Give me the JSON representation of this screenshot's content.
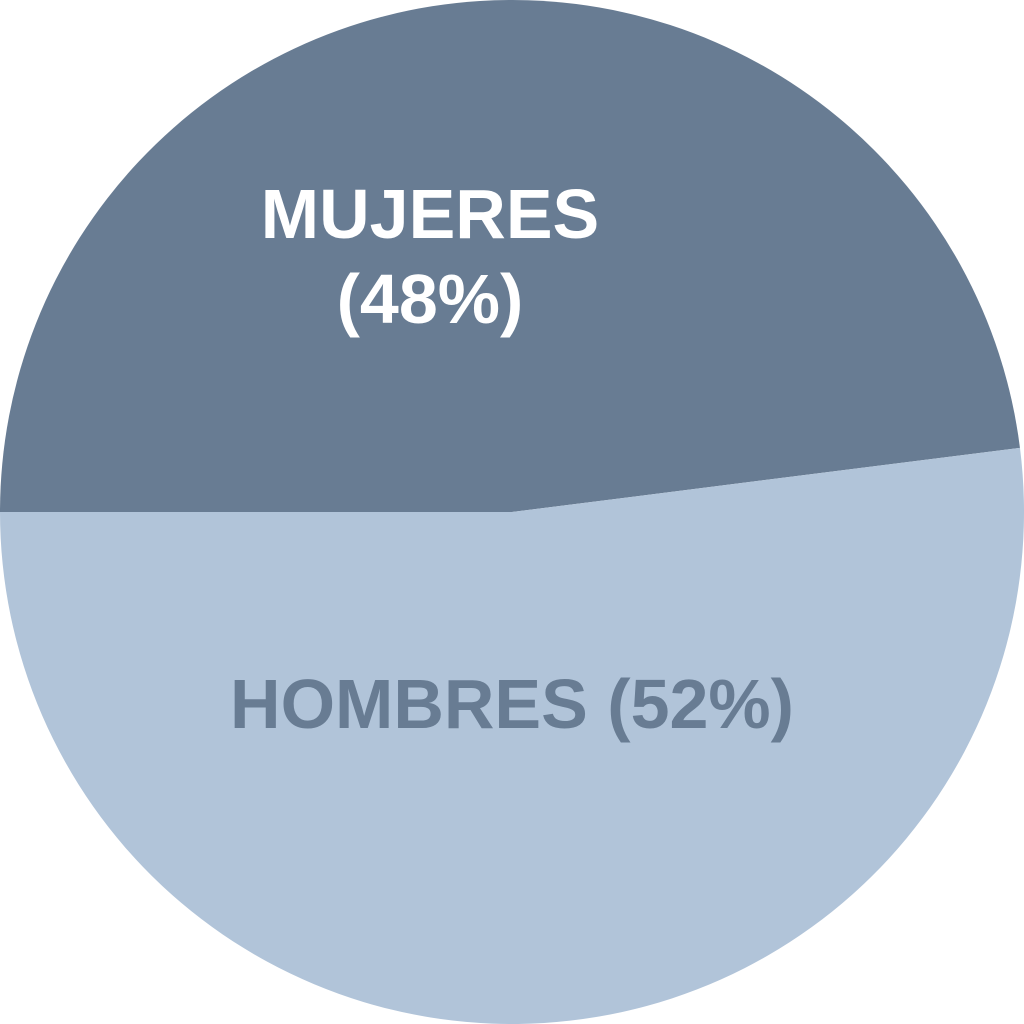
{
  "chart_data": {
    "type": "pie",
    "title": "",
    "start_angle": "9 o'clock, clockwise",
    "slices": [
      {
        "label_line1": "MUJERES",
        "label_line2": "(48%)",
        "value": 48,
        "color": "#687c93",
        "label_color": "#ffffff"
      },
      {
        "label_line1": "HOMBRES (52%)",
        "label_line2": "",
        "value": 52,
        "color": "#b1c4d9",
        "label_color": "#687c93"
      }
    ]
  }
}
